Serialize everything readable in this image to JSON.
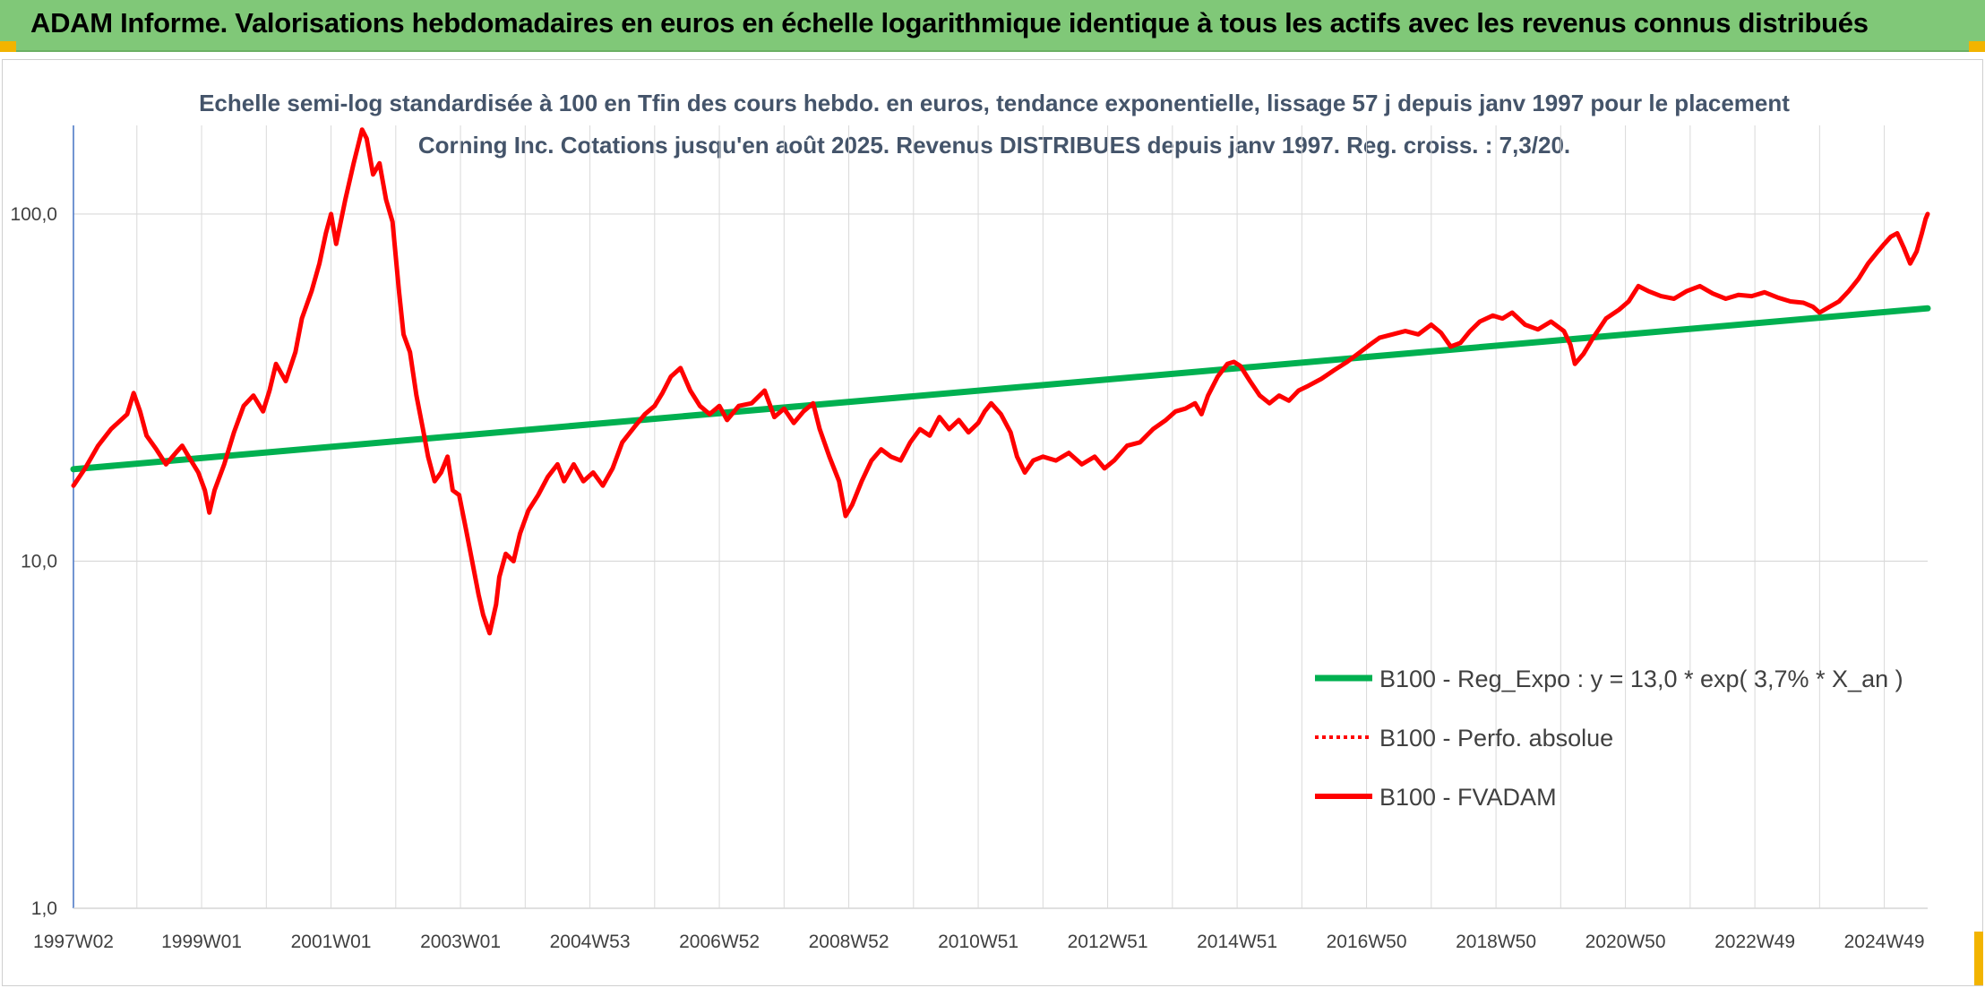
{
  "header": {
    "title": "ADAM Informe. Valorisations hebdomadaires en euros en échelle logarithmique identique à tous les actifs avec les revenus connus distribués"
  },
  "colors": {
    "banner": "#80c878",
    "trend": "#00b050",
    "fvadam": "#ff0000",
    "perfo": "#ff0000",
    "grid": "#d9d9d9",
    "axis": "#4472c4"
  },
  "chart_data": {
    "type": "line",
    "title": "Echelle semi-log standardisée à 100 en Tfin des cours hebdo. en euros, tendance exponentielle, lissage 57 j depuis janv 1997 pour le placement Corning Inc. Cotations jusqu'en août 2025. Revenus DISTRIBUES depuis janv 1997. Reg. croiss. : 7,3/20.",
    "xlabel": "",
    "ylabel": "",
    "y_scale": "log",
    "ylim": [
      1,
      180
    ],
    "xlim": [
      1997.02,
      2025.67
    ],
    "grid": true,
    "legend_position": "bottom-right",
    "y_ticks": [
      {
        "value": 1,
        "label": "1,0"
      },
      {
        "value": 10,
        "label": "10,0"
      },
      {
        "value": 100,
        "label": "100,0"
      }
    ],
    "x_ticks": [
      {
        "value": 1997.02,
        "label": "1997W02"
      },
      {
        "value": 1999.0,
        "label": "1999W01"
      },
      {
        "value": 2001.0,
        "label": "2001W01"
      },
      {
        "value": 2003.0,
        "label": "2003W01"
      },
      {
        "value": 2005.0,
        "label": "2004W53"
      },
      {
        "value": 2007.0,
        "label": "2006W52"
      },
      {
        "value": 2009.0,
        "label": "2008W52"
      },
      {
        "value": 2011.0,
        "label": "2010W51"
      },
      {
        "value": 2013.0,
        "label": "2012W51"
      },
      {
        "value": 2015.0,
        "label": "2014W51"
      },
      {
        "value": 2017.0,
        "label": "2016W50"
      },
      {
        "value": 2019.0,
        "label": "2018W50"
      },
      {
        "value": 2021.0,
        "label": "2020W50"
      },
      {
        "value": 2023.0,
        "label": "2022W49"
      },
      {
        "value": 2025.0,
        "label": "2024W49"
      }
    ],
    "series": [
      {
        "name": "B100 - Reg_Expo : y = 13,0 * exp( 3,7% *  X_an )",
        "style": "solid-thick",
        "color": "#00b050",
        "points": [
          [
            1997.02,
            18.4
          ],
          [
            2025.67,
            53.5
          ]
        ]
      },
      {
        "name": "B100 - Perfo. absolue",
        "style": "dotted",
        "color": "#ff0000",
        "points": []
      },
      {
        "name": "B100 - FVADAM",
        "style": "solid",
        "color": "#ff0000",
        "points": [
          [
            1997.02,
            16.5
          ],
          [
            1997.2,
            18.5
          ],
          [
            1997.4,
            21.5
          ],
          [
            1997.6,
            24.0
          ],
          [
            1997.85,
            26.5
          ],
          [
            1997.95,
            30.5
          ],
          [
            1998.05,
            27.0
          ],
          [
            1998.15,
            23.0
          ],
          [
            1998.3,
            21.0
          ],
          [
            1998.45,
            19.0
          ],
          [
            1998.6,
            20.5
          ],
          [
            1998.7,
            21.5
          ],
          [
            1998.8,
            20.0
          ],
          [
            1998.95,
            18.0
          ],
          [
            1999.05,
            16.0
          ],
          [
            1999.12,
            13.8
          ],
          [
            1999.2,
            16.0
          ],
          [
            1999.35,
            19.0
          ],
          [
            1999.5,
            23.5
          ],
          [
            1999.65,
            28.0
          ],
          [
            1999.8,
            30.0
          ],
          [
            1999.95,
            27.0
          ],
          [
            2000.05,
            31.0
          ],
          [
            2000.15,
            37.0
          ],
          [
            2000.3,
            33.0
          ],
          [
            2000.45,
            40.0
          ],
          [
            2000.55,
            50.0
          ],
          [
            2000.7,
            60.0
          ],
          [
            2000.82,
            72.0
          ],
          [
            2000.92,
            88.0
          ],
          [
            2001.0,
            100.0
          ],
          [
            2001.08,
            82.0
          ],
          [
            2001.15,
            95.0
          ],
          [
            2001.22,
            110.0
          ],
          [
            2001.35,
            140.0
          ],
          [
            2001.48,
            175.0
          ],
          [
            2001.55,
            165.0
          ],
          [
            2001.65,
            130.0
          ],
          [
            2001.75,
            140.0
          ],
          [
            2001.85,
            110.0
          ],
          [
            2001.95,
            95.0
          ],
          [
            2002.05,
            60.0
          ],
          [
            2002.12,
            45.0
          ],
          [
            2002.22,
            40.0
          ],
          [
            2002.32,
            30.0
          ],
          [
            2002.42,
            24.0
          ],
          [
            2002.5,
            20.0
          ],
          [
            2002.6,
            17.0
          ],
          [
            2002.7,
            18.0
          ],
          [
            2002.8,
            20.0
          ],
          [
            2002.88,
            16.0
          ],
          [
            2002.98,
            15.5
          ],
          [
            2003.08,
            12.5
          ],
          [
            2003.18,
            10.0
          ],
          [
            2003.28,
            8.0
          ],
          [
            2003.35,
            7.0
          ],
          [
            2003.45,
            6.2
          ],
          [
            2003.55,
            7.5
          ],
          [
            2003.6,
            9.0
          ],
          [
            2003.7,
            10.5
          ],
          [
            2003.82,
            10.0
          ],
          [
            2003.92,
            12.0
          ],
          [
            2004.05,
            14.0
          ],
          [
            2004.2,
            15.5
          ],
          [
            2004.35,
            17.5
          ],
          [
            2004.5,
            19.0
          ],
          [
            2004.6,
            17.0
          ],
          [
            2004.75,
            19.0
          ],
          [
            2004.9,
            17.0
          ],
          [
            2005.05,
            18.0
          ],
          [
            2005.2,
            16.5
          ],
          [
            2005.35,
            18.5
          ],
          [
            2005.5,
            22.0
          ],
          [
            2005.7,
            24.5
          ],
          [
            2005.85,
            26.5
          ],
          [
            2006.0,
            28.0
          ],
          [
            2006.12,
            30.5
          ],
          [
            2006.25,
            34.0
          ],
          [
            2006.4,
            36.0
          ],
          [
            2006.55,
            31.0
          ],
          [
            2006.7,
            28.0
          ],
          [
            2006.85,
            26.5
          ],
          [
            2007.0,
            28.0
          ],
          [
            2007.12,
            25.5
          ],
          [
            2007.3,
            28.0
          ],
          [
            2007.5,
            28.5
          ],
          [
            2007.7,
            31.0
          ],
          [
            2007.85,
            26.0
          ],
          [
            2008.0,
            27.5
          ],
          [
            2008.15,
            25.0
          ],
          [
            2008.3,
            27.0
          ],
          [
            2008.45,
            28.5
          ],
          [
            2008.55,
            24.0
          ],
          [
            2008.7,
            20.0
          ],
          [
            2008.85,
            17.0
          ],
          [
            2008.95,
            13.5
          ],
          [
            2009.05,
            14.5
          ],
          [
            2009.2,
            17.0
          ],
          [
            2009.35,
            19.5
          ],
          [
            2009.5,
            21.0
          ],
          [
            2009.65,
            20.0
          ],
          [
            2009.8,
            19.5
          ],
          [
            2009.95,
            22.0
          ],
          [
            2010.1,
            24.0
          ],
          [
            2010.25,
            23.0
          ],
          [
            2010.4,
            26.0
          ],
          [
            2010.55,
            24.0
          ],
          [
            2010.7,
            25.5
          ],
          [
            2010.85,
            23.5
          ],
          [
            2011.0,
            25.0
          ],
          [
            2011.1,
            27.0
          ],
          [
            2011.2,
            28.5
          ],
          [
            2011.35,
            26.5
          ],
          [
            2011.5,
            23.5
          ],
          [
            2011.6,
            20.0
          ],
          [
            2011.72,
            18.0
          ],
          [
            2011.85,
            19.5
          ],
          [
            2012.0,
            20.0
          ],
          [
            2012.2,
            19.5
          ],
          [
            2012.4,
            20.5
          ],
          [
            2012.6,
            19.0
          ],
          [
            2012.8,
            20.0
          ],
          [
            2012.95,
            18.5
          ],
          [
            2013.1,
            19.5
          ],
          [
            2013.3,
            21.5
          ],
          [
            2013.5,
            22.0
          ],
          [
            2013.7,
            24.0
          ],
          [
            2013.9,
            25.5
          ],
          [
            2014.05,
            27.0
          ],
          [
            2014.2,
            27.5
          ],
          [
            2014.35,
            28.5
          ],
          [
            2014.45,
            26.5
          ],
          [
            2014.55,
            30.0
          ],
          [
            2014.7,
            34.0
          ],
          [
            2014.85,
            37.0
          ],
          [
            2014.95,
            37.5
          ],
          [
            2015.05,
            36.5
          ],
          [
            2015.2,
            33.0
          ],
          [
            2015.35,
            30.0
          ],
          [
            2015.5,
            28.5
          ],
          [
            2015.65,
            30.0
          ],
          [
            2015.8,
            29.0
          ],
          [
            2015.95,
            31.0
          ],
          [
            2016.1,
            32.0
          ],
          [
            2016.3,
            33.5
          ],
          [
            2016.5,
            35.5
          ],
          [
            2016.7,
            37.5
          ],
          [
            2016.9,
            40.0
          ],
          [
            2017.05,
            42.0
          ],
          [
            2017.2,
            44.0
          ],
          [
            2017.4,
            45.0
          ],
          [
            2017.6,
            46.0
          ],
          [
            2017.8,
            45.0
          ],
          [
            2018.0,
            48.0
          ],
          [
            2018.15,
            45.5
          ],
          [
            2018.3,
            41.5
          ],
          [
            2018.45,
            42.5
          ],
          [
            2018.6,
            46.0
          ],
          [
            2018.75,
            49.0
          ],
          [
            2018.95,
            51.0
          ],
          [
            2019.1,
            50.0
          ],
          [
            2019.25,
            52.0
          ],
          [
            2019.45,
            48.0
          ],
          [
            2019.65,
            46.5
          ],
          [
            2019.85,
            49.0
          ],
          [
            2020.05,
            46.0
          ],
          [
            2020.15,
            42.0
          ],
          [
            2020.22,
            37.0
          ],
          [
            2020.35,
            39.5
          ],
          [
            2020.5,
            44.0
          ],
          [
            2020.7,
            50.0
          ],
          [
            2020.9,
            53.0
          ],
          [
            2021.05,
            56.0
          ],
          [
            2021.2,
            62.0
          ],
          [
            2021.35,
            60.0
          ],
          [
            2021.55,
            58.0
          ],
          [
            2021.75,
            57.0
          ],
          [
            2021.95,
            60.0
          ],
          [
            2022.15,
            62.0
          ],
          [
            2022.35,
            59.0
          ],
          [
            2022.55,
            57.0
          ],
          [
            2022.75,
            58.5
          ],
          [
            2022.95,
            58.0
          ],
          [
            2023.15,
            59.5
          ],
          [
            2023.35,
            57.5
          ],
          [
            2023.55,
            56.0
          ],
          [
            2023.75,
            55.5
          ],
          [
            2023.9,
            54.0
          ],
          [
            2024.0,
            52.0
          ],
          [
            2024.15,
            54.0
          ],
          [
            2024.3,
            56.0
          ],
          [
            2024.45,
            60.0
          ],
          [
            2024.6,
            65.0
          ],
          [
            2024.75,
            72.0
          ],
          [
            2024.9,
            78.0
          ],
          [
            2025.0,
            82.0
          ],
          [
            2025.1,
            86.0
          ],
          [
            2025.2,
            88.0
          ],
          [
            2025.3,
            80.0
          ],
          [
            2025.4,
            72.0
          ],
          [
            2025.5,
            78.0
          ],
          [
            2025.58,
            88.0
          ],
          [
            2025.64,
            97.0
          ],
          [
            2025.67,
            100.0
          ]
        ]
      }
    ]
  }
}
